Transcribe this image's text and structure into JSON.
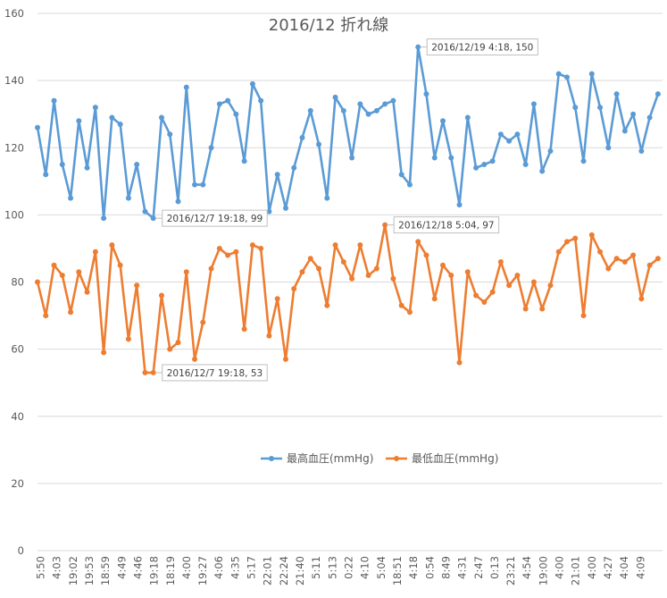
{
  "chart_data": {
    "type": "line",
    "title": "2016/12  折れ線",
    "xlabel": "",
    "ylabel": "",
    "ylim": [
      0,
      160
    ],
    "yticks": [
      0,
      20,
      40,
      60,
      80,
      100,
      120,
      140,
      160
    ],
    "grid": true,
    "legend_position": "bottom-center",
    "x_tick_labels": [
      "5:50",
      "4:03",
      "19:02",
      "19:53",
      "18:59",
      "4:49",
      "4:46",
      "19:18",
      "18:19",
      "4:00",
      "19:27",
      "4:06",
      "4:35",
      "5:17",
      "22:01",
      "22:24",
      "21:40",
      "5:11",
      "5:13",
      "0:22",
      "4:10",
      "5:04",
      "18:51",
      "4:18",
      "0:54",
      "8:49",
      "4:31",
      "2:47",
      "0:13",
      "23:21",
      "4:54",
      "19:00",
      "4:00",
      "21:01",
      "4:00",
      "4:27",
      "4:04",
      "4:09"
    ],
    "series": [
      {
        "name": "最高血圧(mmHg)",
        "color": "#5B9BD5",
        "values": [
          126,
          112,
          134,
          115,
          105,
          128,
          114,
          132,
          99,
          129,
          127,
          105,
          115,
          101,
          99,
          129,
          124,
          104,
          138,
          109,
          109,
          120,
          133,
          134,
          130,
          116,
          139,
          134,
          101,
          112,
          102,
          114,
          123,
          131,
          121,
          105,
          135,
          131,
          117,
          133,
          130,
          131,
          133,
          134,
          112,
          109,
          150,
          136,
          117,
          128,
          117,
          103,
          129,
          114,
          115,
          116,
          124,
          122,
          124,
          115,
          133,
          113,
          119,
          142,
          141,
          132,
          116,
          142,
          132,
          120,
          136,
          125,
          130,
          119,
          129,
          136
        ]
      },
      {
        "name": "最低血圧(mmHg)",
        "color": "#ED7D31",
        "values": [
          80,
          70,
          85,
          82,
          71,
          83,
          77,
          89,
          59,
          91,
          85,
          63,
          79,
          53,
          53,
          76,
          60,
          62,
          83,
          57,
          68,
          84,
          90,
          88,
          89,
          66,
          91,
          90,
          64,
          75,
          57,
          78,
          83,
          87,
          84,
          73,
          91,
          86,
          81,
          91,
          82,
          84,
          97,
          81,
          73,
          71,
          92,
          88,
          75,
          85,
          82,
          56,
          83,
          76,
          74,
          77,
          86,
          79,
          82,
          72,
          80,
          72,
          79,
          89,
          92,
          93,
          70,
          94,
          89,
          84,
          87,
          86,
          88,
          75,
          85,
          87
        ]
      }
    ],
    "annotations": [
      {
        "series": 0,
        "index": 46,
        "text": "2016/12/19 4:18, 150"
      },
      {
        "series": 0,
        "index": 14,
        "text": "2016/12/7 19:18, 99"
      },
      {
        "series": 1,
        "index": 42,
        "text": "2016/12/18 5:04, 97"
      },
      {
        "series": 1,
        "index": 14,
        "text": "2016/12/7 19:18, 53"
      }
    ]
  }
}
